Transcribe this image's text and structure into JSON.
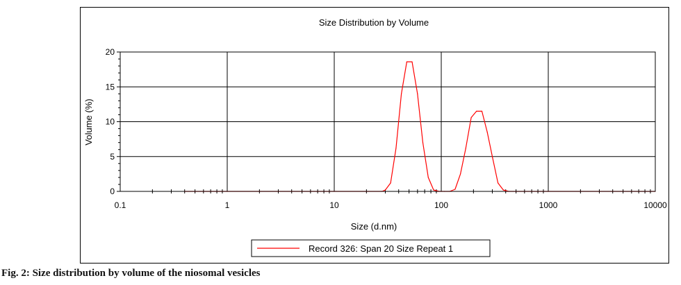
{
  "chart_data": {
    "type": "line",
    "title": "Size Distribution by Volume",
    "xlabel": "Size (d.nm)",
    "ylabel": "Volume (%)",
    "x_scale": "log",
    "xlim": [
      0.1,
      10000
    ],
    "ylim": [
      0,
      20
    ],
    "x_ticks": [
      "0.1",
      "1",
      "10",
      "100",
      "1000",
      "10000"
    ],
    "y_ticks": [
      "0",
      "5",
      "10",
      "15",
      "20"
    ],
    "grid": true,
    "legend_position": "bottom-center",
    "series_color": "#ff0000",
    "series": [
      {
        "name": "Record 326: Span 20 Size Repeat 1",
        "x": [
          0.4,
          1,
          10,
          28,
          30,
          33.6,
          37.8,
          42.4,
          47.6,
          53.4,
          60,
          67.3,
          75.6,
          84.8,
          95.2,
          106.7,
          120,
          134.6,
          151,
          169.5,
          190.4,
          213.4,
          239.7,
          268.9,
          301.8,
          338.7,
          380.2,
          426.6,
          1000,
          10000
        ],
        "y": [
          0,
          0,
          0,
          0,
          0.2,
          1.2,
          6.2,
          14.0,
          18.6,
          18.6,
          14.0,
          7.0,
          2.0,
          0.2,
          0,
          0,
          0,
          0.3,
          2.5,
          6.2,
          10.6,
          11.5,
          11.5,
          8.5,
          4.8,
          1.2,
          0.2,
          0,
          0,
          0
        ]
      }
    ]
  },
  "caption": "Fig. 2: Size distribution by volume of the niosomal vesicles"
}
